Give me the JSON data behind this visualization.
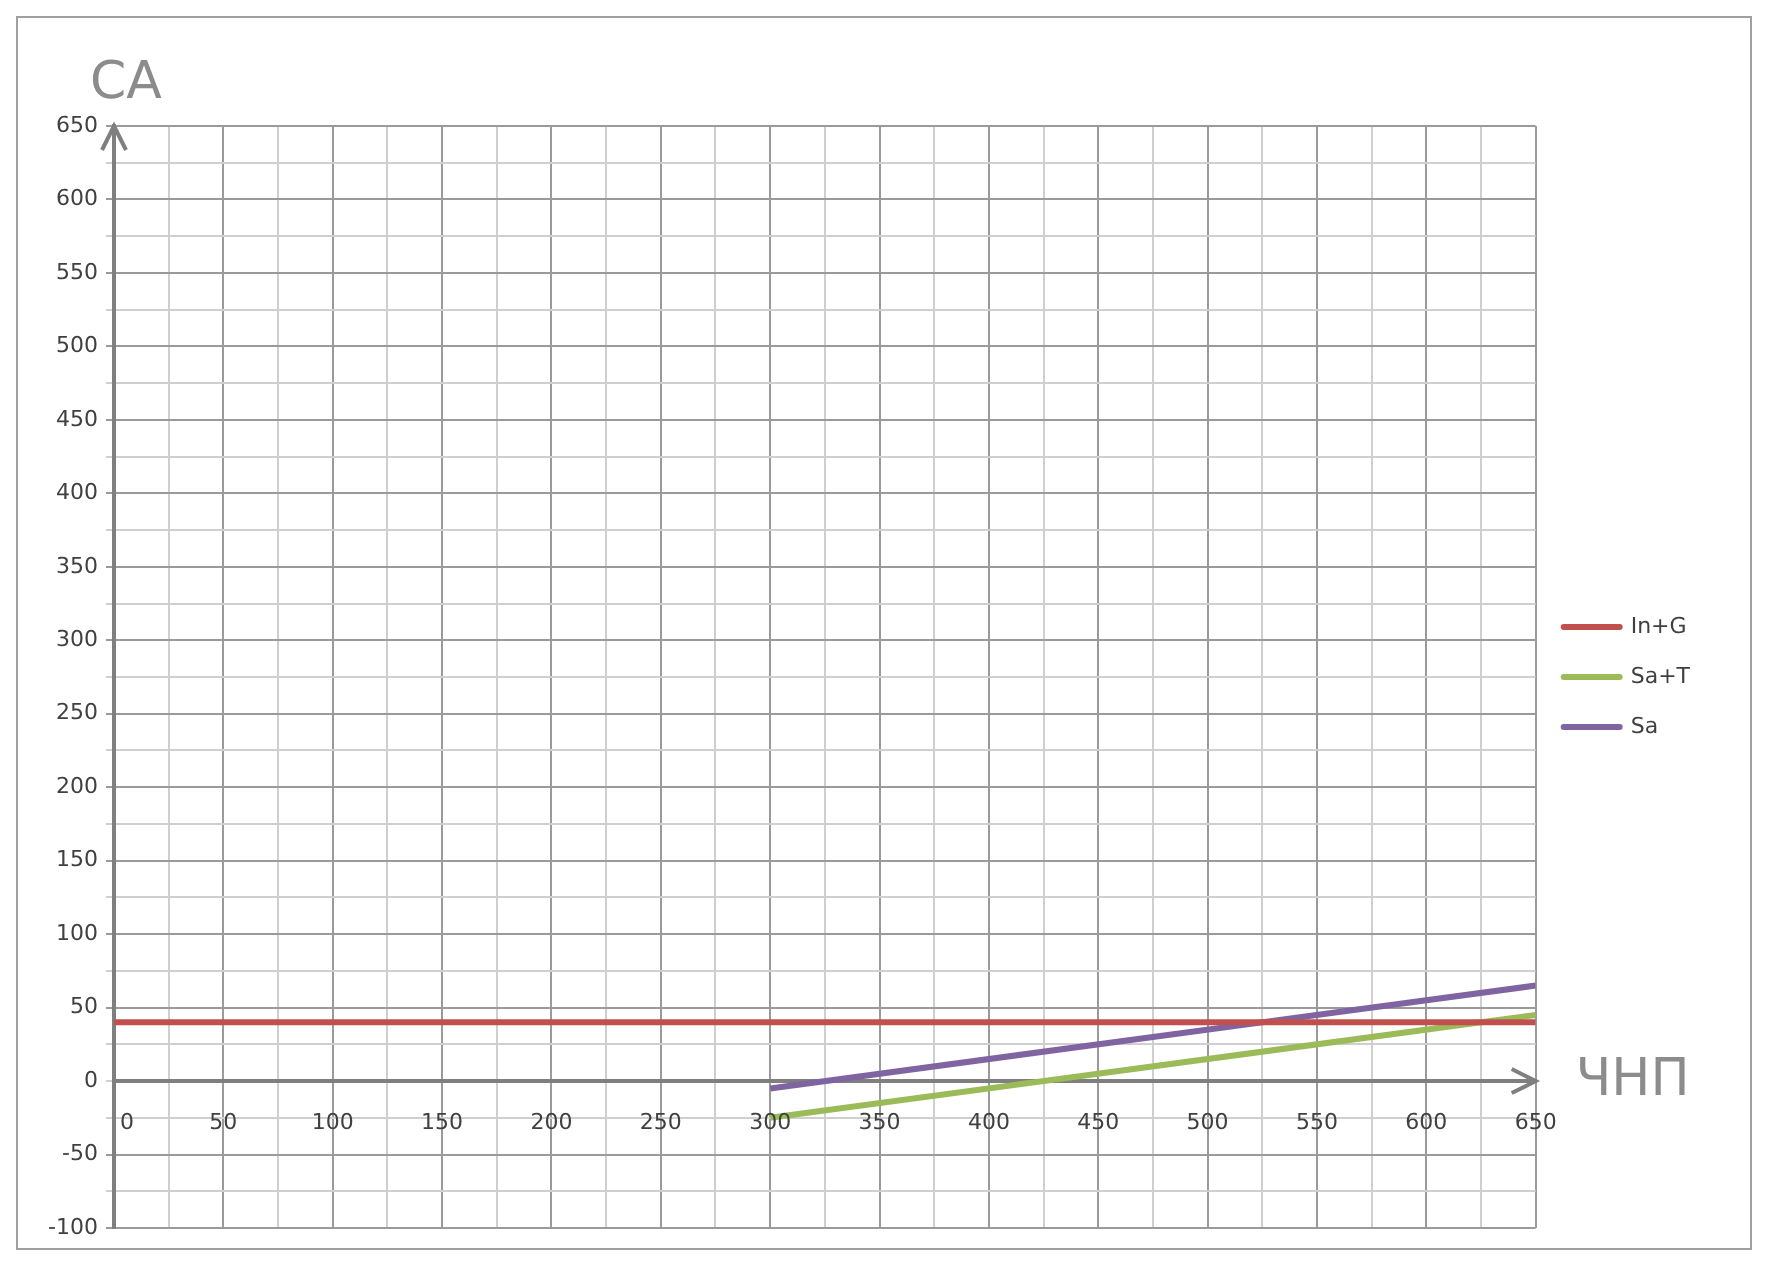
{
  "chart_data": {
    "type": "line",
    "xlabel": "ЧНП",
    "ylabel": "СА",
    "xlim": [
      0,
      650
    ],
    "ylim": [
      -100,
      650
    ],
    "xticks": [
      0,
      {
        "value": 25,
        "label": null
      },
      50,
      {
        "value": 75,
        "label": null
      },
      100,
      {
        "value": 125,
        "label": null
      },
      150,
      {
        "value": 175,
        "label": null
      },
      200,
      {
        "value": 225,
        "label": null
      },
      250,
      {
        "value": 275,
        "label": null
      },
      300,
      {
        "value": 325,
        "label": null
      },
      350,
      {
        "value": 375,
        "label": null
      },
      400,
      {
        "value": 425,
        "label": null
      },
      450,
      {
        "value": 475,
        "label": null
      },
      500,
      {
        "value": 525,
        "label": null
      },
      550,
      {
        "value": 575,
        "label": null
      },
      600,
      {
        "value": 625,
        "label": null
      },
      650
    ],
    "yticks": [
      -100,
      {
        "value": -75,
        "label": null
      },
      -50,
      {
        "value": -25,
        "label": null
      },
      0,
      {
        "value": 25,
        "label": null
      },
      50,
      {
        "value": 75,
        "label": null
      },
      100,
      {
        "value": 125,
        "label": null
      },
      150,
      {
        "value": 175,
        "label": null
      },
      200,
      {
        "value": 225,
        "label": null
      },
      250,
      {
        "value": 275,
        "label": null
      },
      300,
      {
        "value": 325,
        "label": null
      },
      350,
      {
        "value": 375,
        "label": null
      },
      400,
      {
        "value": 425,
        "label": null
      },
      450,
      {
        "value": 475,
        "label": null
      },
      500,
      {
        "value": 525,
        "label": null
      },
      550,
      {
        "value": 575,
        "label": null
      },
      600,
      {
        "value": 625,
        "label": null
      },
      650
    ],
    "grid": true,
    "legend": "right",
    "marker": "none",
    "line_style": "solid",
    "series": [
      {
        "name": "In+G",
        "color": "#c0504d",
        "x": [
          0,
          650
        ],
        "values": [
          40,
          40
        ]
      },
      {
        "name": "Sa+T",
        "color": "#9bbb59",
        "x": [
          300,
          650
        ],
        "values": [
          -25,
          45
        ]
      },
      {
        "name": "Sa",
        "color": "#8064a2",
        "x": [
          300,
          650
        ],
        "values": [
          -5,
          65
        ]
      }
    ]
  }
}
